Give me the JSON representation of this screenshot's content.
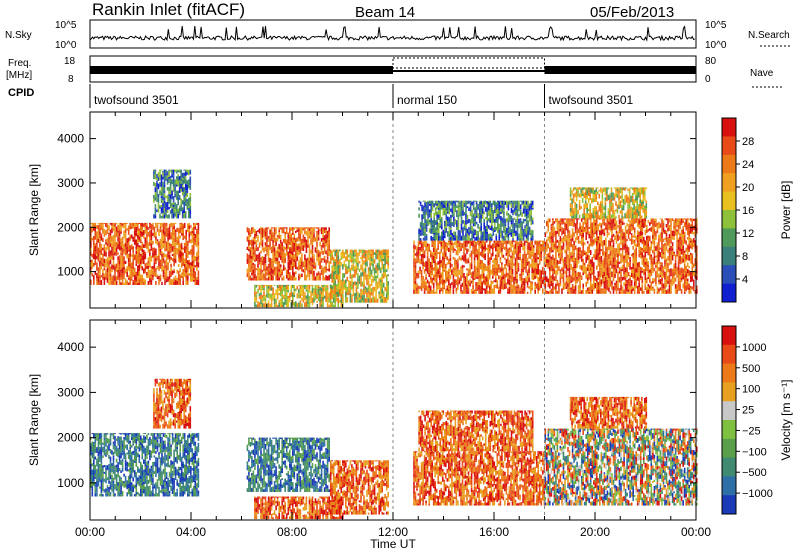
{
  "header": {
    "station": "Rankin Inlet (fitACF)",
    "beam": "Beam 14",
    "date": "05/Feb/2013"
  },
  "strip_labels": {
    "nsky": "N.Sky",
    "nsky_ticks": [
      "10^5",
      "10^0"
    ],
    "nsearch": "N.Search",
    "nsearch_ticks": [
      "10^5",
      "10^0"
    ],
    "freq_top": "Freq.",
    "freq_unit": "[MHz]",
    "freq_ticks": [
      "18",
      "8"
    ],
    "nave": "Nave",
    "nave_ticks": [
      "80",
      "0"
    ],
    "cpid": "CPID"
  },
  "cpid_segments": [
    {
      "label": "twofsound 3501",
      "start": 0,
      "end": 12
    },
    {
      "label": "normal 150",
      "start": 12,
      "end": 18
    },
    {
      "label": "twofsound 3501",
      "start": 18,
      "end": 24
    }
  ],
  "chart_data": [
    {
      "type": "heatmap",
      "title": "Power",
      "ylabel": "Slant Range [km]",
      "ylim": [
        180,
        4600
      ],
      "yticks": [
        "1000",
        "2000",
        "3000",
        "4000"
      ],
      "xlim": [
        0,
        24
      ],
      "colorbar": {
        "label": "Power [dB]",
        "ticks": [
          "28",
          "24",
          "20",
          "16",
          "12",
          "8",
          "4"
        ],
        "colors": [
          "#1020d0",
          "#2a4fb8",
          "#3b7f7a",
          "#4f9a5a",
          "#8fc03a",
          "#e8c020",
          "#f0a020",
          "#ec7a18",
          "#e84a18",
          "#d81010"
        ]
      },
      "echo_regions": [
        {
          "t0": 0.0,
          "t1": 4.3,
          "r0": 700,
          "r1": 2100,
          "level": "high"
        },
        {
          "t0": 2.5,
          "t1": 4.0,
          "r0": 2200,
          "r1": 3300,
          "level": "low"
        },
        {
          "t0": 6.2,
          "t1": 9.5,
          "r0": 800,
          "r1": 2000,
          "level": "high"
        },
        {
          "t0": 6.5,
          "t1": 10.0,
          "r0": 200,
          "r1": 700,
          "level": "mid"
        },
        {
          "t0": 9.5,
          "t1": 11.8,
          "r0": 300,
          "r1": 1500,
          "level": "mid"
        },
        {
          "t0": 12.8,
          "t1": 18.0,
          "r0": 500,
          "r1": 1700,
          "level": "high"
        },
        {
          "t0": 13.0,
          "t1": 17.5,
          "r0": 1700,
          "r1": 2600,
          "level": "low"
        },
        {
          "t0": 18.0,
          "t1": 24.0,
          "r0": 500,
          "r1": 2200,
          "level": "high"
        },
        {
          "t0": 19.0,
          "t1": 22.0,
          "r0": 2200,
          "r1": 2900,
          "level": "mid"
        }
      ]
    },
    {
      "type": "heatmap",
      "title": "Velocity",
      "ylabel": "Slant Range [km]",
      "xlabel": "Time UT",
      "ylim": [
        180,
        4600
      ],
      "yticks": [
        "1000",
        "2000",
        "3000",
        "4000"
      ],
      "xlim": [
        0,
        24
      ],
      "xticks": [
        "00:00",
        "04:00",
        "08:00",
        "12:00",
        "16:00",
        "20:00",
        "00:00"
      ],
      "colorbar": {
        "label": "Velocity [m s⁻¹]",
        "ticks": [
          "1000",
          "500",
          "100",
          "25",
          "−25",
          "−100",
          "−500",
          "−1000"
        ],
        "colors": [
          "#1a3ab8",
          "#2f6fa8",
          "#3f8a70",
          "#5aa04c",
          "#80c040",
          "#c8c8c8",
          "#e8a020",
          "#ec7a18",
          "#e84a18",
          "#d81010"
        ]
      },
      "echo_regions": [
        {
          "t0": 0.0,
          "t1": 4.3,
          "r0": 700,
          "r1": 2100,
          "level": "toward_fast"
        },
        {
          "t0": 2.5,
          "t1": 4.0,
          "r0": 2200,
          "r1": 3300,
          "level": "away"
        },
        {
          "t0": 6.2,
          "t1": 9.5,
          "r0": 800,
          "r1": 2000,
          "level": "toward"
        },
        {
          "t0": 6.5,
          "t1": 10.0,
          "r0": 200,
          "r1": 700,
          "level": "away"
        },
        {
          "t0": 9.5,
          "t1": 11.8,
          "r0": 300,
          "r1": 1500,
          "level": "away"
        },
        {
          "t0": 12.8,
          "t1": 18.0,
          "r0": 500,
          "r1": 1700,
          "level": "away"
        },
        {
          "t0": 13.0,
          "t1": 17.5,
          "r0": 1700,
          "r1": 2600,
          "level": "away"
        },
        {
          "t0": 18.0,
          "t1": 24.0,
          "r0": 500,
          "r1": 2200,
          "level": "mixed"
        },
        {
          "t0": 19.0,
          "t1": 22.0,
          "r0": 2200,
          "r1": 2900,
          "level": "away"
        }
      ]
    }
  ]
}
